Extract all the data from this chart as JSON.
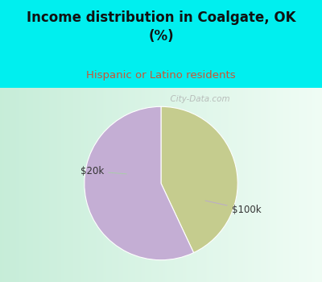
{
  "title": "Income distribution in Coalgate, OK\n(%)",
  "subtitle": "Hispanic or Latino residents",
  "slices": [
    0.43,
    0.57
  ],
  "labels": [
    "$20k",
    "$100k"
  ],
  "colors": [
    "#c5cc8e",
    "#c4aed4"
  ],
  "start_angle": 90,
  "bg_color_top": "#00efef",
  "title_color": "#111111",
  "subtitle_color": "#cc5533",
  "label_color": "#333333",
  "watermark": "  City-Data.com"
}
